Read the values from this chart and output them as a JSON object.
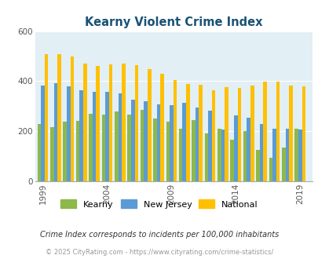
{
  "title": "Kearny Violent Crime Index",
  "title_color": "#1a5276",
  "years": [
    1999,
    2000,
    2001,
    2002,
    2003,
    2004,
    2005,
    2006,
    2007,
    2008,
    2009,
    2010,
    2011,
    2012,
    2013,
    2014,
    2015,
    2016,
    2017,
    2018,
    2019
  ],
  "kearny": [
    228,
    215,
    238,
    240,
    270,
    265,
    280,
    265,
    285,
    250,
    238,
    210,
    245,
    190,
    210,
    165,
    200,
    125,
    95,
    135,
    210
  ],
  "new_jersey": [
    382,
    393,
    378,
    365,
    357,
    358,
    352,
    325,
    320,
    308,
    305,
    315,
    295,
    283,
    207,
    262,
    253,
    228,
    209,
    209,
    208
  ],
  "national": [
    507,
    507,
    498,
    470,
    460,
    468,
    470,
    465,
    448,
    428,
    405,
    390,
    387,
    365,
    375,
    373,
    383,
    398,
    397,
    382,
    379
  ],
  "kearny_color": "#8db84a",
  "nj_color": "#5b9bd5",
  "national_color": "#ffc000",
  "plot_bg": "#e2eff5",
  "ylim": [
    0,
    600
  ],
  "yticks": [
    0,
    200,
    400,
    600
  ],
  "xlabel_years": [
    1999,
    2004,
    2009,
    2014,
    2019
  ],
  "footer1": "Crime Index corresponds to incidents per 100,000 inhabitants",
  "footer2": "© 2025 CityRating.com - https://www.cityrating.com/crime-statistics/",
  "bar_width": 0.28
}
